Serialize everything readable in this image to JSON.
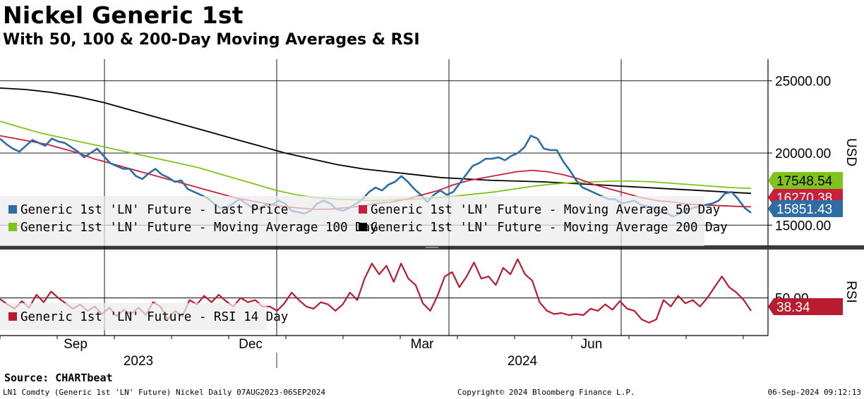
{
  "header": {
    "title": "Nickel Generic 1st",
    "subtitle": "With 50, 100 & 200-Day Moving Averages & RSI"
  },
  "footer": {
    "source": "Source: CHARTbeat",
    "ticker_info": "LN1 Comdty (Generic 1st 'LN' Future) Nickel  Daily 07AUG2023-06SEP2024",
    "copyright": "Copyright© 2024 Bloomberg Finance L.P.",
    "timestamp": "06-Sep-2024 09:12:13"
  },
  "colors": {
    "last_price": "#2e6da4",
    "ma50": "#c8203a",
    "ma100": "#7fc31c",
    "ma200": "#000000",
    "rsi": "#b81c30"
  },
  "chart_data": [
    {
      "type": "line",
      "panel": "price",
      "title": "Nickel Generic 1st",
      "ylabel": "USD",
      "ylim": [
        13600,
        26500
      ],
      "yticks": [
        "25000.00",
        "20000.00",
        "15000.00"
      ],
      "x_date_range": [
        "07AUG2023",
        "06SEP2024"
      ],
      "x_month_labels": [
        "Sep",
        "Dec",
        "Mar",
        "Jun"
      ],
      "x_year_labels": [
        "2023",
        "2024"
      ],
      "series": [
        {
          "name": "Generic 1st 'LN' Future - Last Price",
          "color_key": "last_price",
          "end_label": "15851.43",
          "values": [
            21000,
            20600,
            20300,
            20100,
            20500,
            20900,
            20700,
            20500,
            21000,
            20800,
            20700,
            20400,
            20100,
            19700,
            20000,
            20300,
            19800,
            19300,
            19100,
            18900,
            18900,
            18400,
            18200,
            18600,
            18900,
            18500,
            18300,
            18000,
            18100,
            17500,
            17300,
            17100,
            16900,
            16500,
            16200,
            16200,
            16500,
            16800,
            16500,
            16200,
            16100,
            16400,
            16400,
            16700,
            16500,
            16000,
            15900,
            15800,
            16000,
            16500,
            16700,
            16500,
            16100,
            16000,
            16200,
            16500,
            16800,
            17300,
            17600,
            17400,
            17800,
            18000,
            18400,
            18000,
            17500,
            17100,
            16600,
            17100,
            17400,
            17100,
            17300,
            17900,
            18500,
            19100,
            19300,
            19600,
            19600,
            19700,
            19500,
            19800,
            20000,
            20400,
            21200,
            21000,
            20300,
            20200,
            20200,
            19400,
            18800,
            18100,
            17600,
            17400,
            17200,
            17000,
            16800,
            16800,
            16500,
            16600,
            16700,
            16400,
            16300,
            16200,
            15900,
            15800,
            15600,
            15800,
            16000,
            16200,
            16300,
            16400,
            16500,
            16700,
            17200,
            17300,
            16800,
            16200,
            15851
          ]
        },
        {
          "name": "Generic 1st 'LN' Future - Moving Average 50 Day",
          "color_key": "ma50",
          "end_label": "16270.38",
          "values": [
            21200,
            21000,
            20800,
            20600,
            20300,
            20000,
            19600,
            19300,
            19000,
            18700,
            18400,
            18100,
            17800,
            17500,
            17200,
            16900,
            16700,
            16500,
            16300,
            16200,
            16100,
            16100,
            16200,
            16300,
            16500,
            16600,
            16800,
            17100,
            17400,
            17800,
            18100,
            18300,
            18500,
            18700,
            18800,
            18700,
            18500,
            18200,
            17800,
            17500,
            17200,
            16900,
            16700,
            16600,
            16450,
            16400,
            16350,
            16300,
            16270
          ]
        },
        {
          "name": "Generic 1st 'LN' Future - Moving Average 100 Day",
          "color_key": "ma100",
          "end_label": "17548.54",
          "values": [
            22200,
            21800,
            21400,
            21100,
            20800,
            20500,
            20200,
            19900,
            19600,
            19300,
            19000,
            18600,
            18200,
            17800,
            17400,
            17100,
            16900,
            16800,
            16750,
            16700,
            16750,
            16800,
            16900,
            17000,
            17150,
            17300,
            17500,
            17700,
            17850,
            17950,
            18000,
            18050,
            18050,
            18000,
            17900,
            17800,
            17700,
            17600,
            17548
          ]
        },
        {
          "name": "Generic 1st 'LN' Future - Moving Average 200 Day",
          "color_key": "ma200",
          "values": [
            24500,
            24400,
            24200,
            23900,
            23500,
            23000,
            22500,
            22000,
            21500,
            21000,
            20500,
            20000,
            19600,
            19200,
            18900,
            18700,
            18500,
            18300,
            18200,
            18100,
            18050,
            18000,
            17900,
            17800,
            17700,
            17600,
            17500,
            17400,
            17300,
            17200
          ]
        }
      ]
    },
    {
      "type": "line",
      "panel": "rsi",
      "ylabel": "RSI",
      "ylim": [
        15,
        95
      ],
      "yticks": [
        "50.00"
      ],
      "series": [
        {
          "name": "Generic 1st 'LN' Future - RSI 14 Day",
          "color_key": "rsi",
          "end_label": "38.34",
          "values": [
            49,
            44,
            40,
            47,
            41,
            53,
            46,
            56,
            50,
            45,
            40,
            44,
            38,
            42,
            35,
            41,
            33,
            39,
            35,
            41,
            34,
            46,
            42,
            30,
            38,
            33,
            48,
            44,
            52,
            46,
            53,
            47,
            42,
            50,
            46,
            48,
            42,
            42,
            38,
            45,
            55,
            48,
            42,
            40,
            46,
            44,
            38,
            44,
            55,
            48,
            68,
            82,
            72,
            80,
            65,
            82,
            68,
            62,
            45,
            38,
            52,
            70,
            74,
            60,
            70,
            83,
            68,
            70,
            62,
            78,
            72,
            86,
            72,
            66,
            46,
            38,
            35,
            36,
            34,
            35,
            34,
            40,
            38,
            44,
            39,
            47,
            40,
            38,
            30,
            27,
            30,
            48,
            42,
            52,
            45,
            48,
            42,
            50,
            60,
            70,
            60,
            55,
            48,
            38
          ]
        }
      ]
    }
  ]
}
